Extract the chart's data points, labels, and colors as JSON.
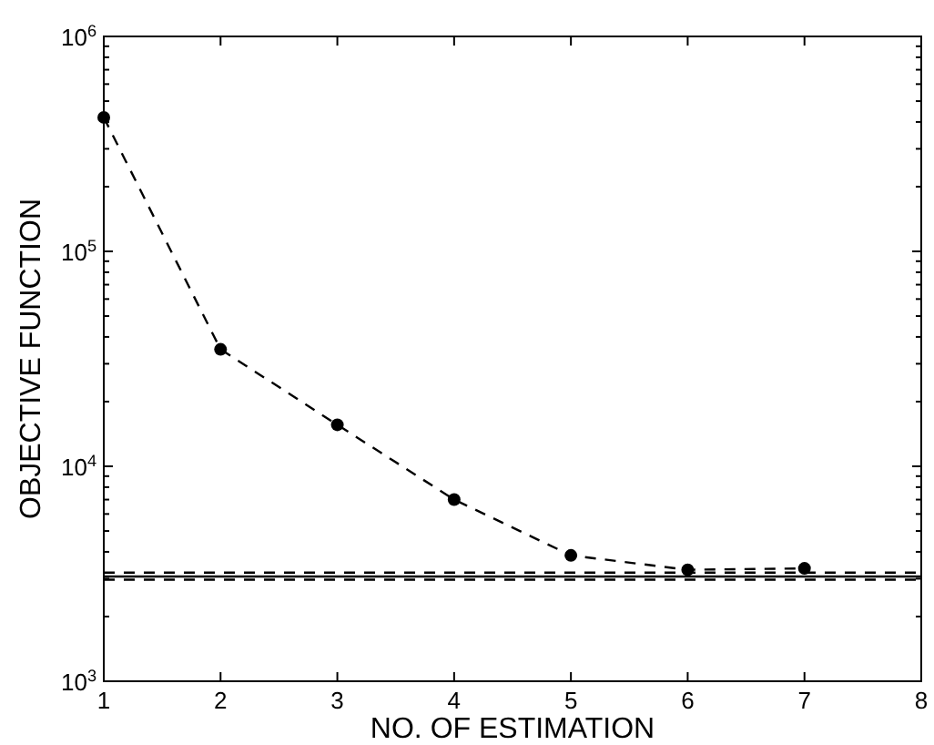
{
  "chart_data": {
    "type": "line",
    "xlabel": "NO. OF ESTIMATION",
    "ylabel": "OBJECTIVE FUNCTION",
    "x": [
      1,
      2,
      3,
      4,
      5,
      6,
      7
    ],
    "series": [
      {
        "color": "#000000",
        "values": [
          420000,
          35000,
          15600,
          7000,
          3850,
          3300,
          3350
        ]
      }
    ],
    "marker": "circle",
    "line_style": "dashed",
    "log": "y",
    "grid": false,
    "xlim": [
      1,
      8
    ],
    "xticks": [
      1,
      2,
      3,
      4,
      5,
      6,
      7,
      8
    ],
    "ylim": [
      1000,
      1000000
    ],
    "yticks": [
      {
        "value": 1000,
        "label": "10$^{3}$"
      },
      {
        "value": 2000,
        "label": null
      },
      {
        "value": 3000,
        "label": null
      },
      {
        "value": 4000,
        "label": null
      },
      {
        "value": 5000,
        "label": null
      },
      {
        "value": 6000,
        "label": null
      },
      {
        "value": 7000,
        "label": null
      },
      {
        "value": 8000,
        "label": null
      },
      {
        "value": 9000,
        "label": null
      },
      {
        "value": 10000,
        "label": "10$^{4}$"
      },
      {
        "value": 20000,
        "label": null
      },
      {
        "value": 30000,
        "label": null
      },
      {
        "value": 40000,
        "label": null
      },
      {
        "value": 50000,
        "label": null
      },
      {
        "value": 60000,
        "label": null
      },
      {
        "value": 70000,
        "label": null
      },
      {
        "value": 80000,
        "label": null
      },
      {
        "value": 90000,
        "label": null
      },
      {
        "value": 100000,
        "label": "10$^{5}$"
      },
      {
        "value": 200000,
        "label": null
      },
      {
        "value": 300000,
        "label": null
      },
      {
        "value": 400000,
        "label": null
      },
      {
        "value": 500000,
        "label": null
      },
      {
        "value": 600000,
        "label": null
      },
      {
        "value": 700000,
        "label": null
      },
      {
        "value": 800000,
        "label": null
      },
      {
        "value": 900000,
        "label": null
      },
      {
        "value": 1000000,
        "label": "10$^{6}$"
      }
    ],
    "ref_lines": [
      {
        "axis": "y",
        "value": 3200,
        "line_style": "dashed",
        "color": "#000000"
      },
      {
        "axis": "y",
        "value": 3070,
        "line_style": "solid",
        "color": "#000000"
      },
      {
        "axis": "y",
        "value": 2970,
        "line_style": "dashed",
        "color": "#000000"
      }
    ]
  }
}
